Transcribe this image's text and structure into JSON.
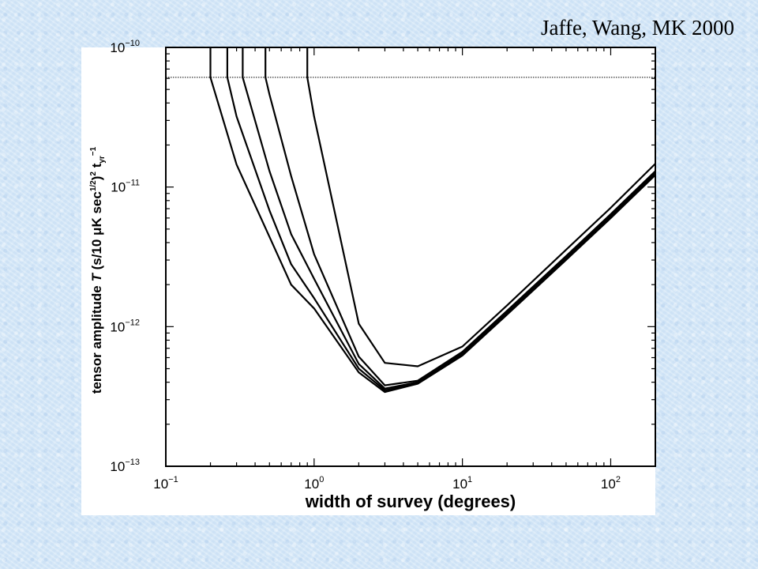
{
  "citation": "Jaffe, Wang, MK 2000",
  "chart_data": {
    "type": "line",
    "title": "",
    "xlabel": "width of survey (degrees)",
    "ylabel": {
      "pre": "tensor amplitude ",
      "symbol": "T",
      "mid": " (s/10 μK sec",
      "exp1": "1/2",
      "close": ")",
      "exp2": "2",
      "t": " t",
      "sub": "yr",
      "exp3": "−1"
    },
    "x_scale": "log",
    "y_scale": "log",
    "xlim": [
      0.1,
      200
    ],
    "ylim": [
      1e-13,
      1e-10
    ],
    "x_ticks": [
      {
        "value": 0.1,
        "base": "10",
        "exp": "−1"
      },
      {
        "value": 1,
        "base": "10",
        "exp": "0"
      },
      {
        "value": 10,
        "base": "10",
        "exp": "1"
      },
      {
        "value": 100,
        "base": "10",
        "exp": "2"
      }
    ],
    "y_ticks": [
      {
        "value": 1e-10,
        "base": "10",
        "exp": "−10"
      },
      {
        "value": 1e-11,
        "base": "10",
        "exp": "−11"
      },
      {
        "value": 1e-12,
        "base": "10",
        "exp": "−12"
      },
      {
        "value": 1e-13,
        "base": "10",
        "exp": "−13"
      }
    ],
    "reference_line": {
      "y": 6.1e-11,
      "style": "dotted"
    },
    "grid": false,
    "series": [
      {
        "x": [
          0.2,
          0.3,
          0.5,
          0.7,
          1.0,
          2.0,
          3.0,
          5.0,
          10,
          20,
          50,
          100,
          200
        ],
        "y": [
          6.1e-11,
          1.45e-11,
          4.4e-12,
          2e-12,
          1.35e-12,
          4.7e-13,
          3.4e-13,
          3.9e-13,
          6.2e-13,
          1.22e-12,
          3e-12,
          6e-12,
          1.22e-11
        ]
      },
      {
        "x": [
          0.26,
          0.3,
          0.5,
          0.7,
          1.0,
          2.0,
          3.0,
          5.0,
          10,
          20,
          50,
          100,
          200
        ],
        "y": [
          6.1e-11,
          3.2e-11,
          6.8e-12,
          2.8e-12,
          1.6e-12,
          5e-13,
          3.5e-13,
          3.95e-13,
          6.3e-13,
          1.24e-12,
          3.05e-12,
          6.1e-12,
          1.24e-11
        ]
      },
      {
        "x": [
          0.33,
          0.5,
          0.7,
          1.0,
          2.0,
          3.0,
          5.0,
          10,
          20,
          50,
          100,
          200
        ],
        "y": [
          6.1e-11,
          1.3e-11,
          4.6e-12,
          2.2e-12,
          5.4e-13,
          3.6e-13,
          4e-13,
          6.5e-13,
          1.27e-12,
          3.1e-12,
          6.2e-12,
          1.27e-11
        ]
      },
      {
        "x": [
          0.47,
          0.5,
          0.7,
          1.0,
          2.0,
          3.0,
          5.0,
          10,
          20,
          50,
          100,
          200
        ],
        "y": [
          6.1e-11,
          4.6e-11,
          1.2e-11,
          3.3e-12,
          6.1e-13,
          3.8e-13,
          4.1e-13,
          6.6e-13,
          1.3e-12,
          3.2e-12,
          6.4e-12,
          1.3e-11
        ]
      },
      {
        "x": [
          0.9,
          1.0,
          2.0,
          3.0,
          5.0,
          10,
          20,
          50,
          100,
          200
        ],
        "y": [
          6.1e-11,
          3.2e-11,
          1.05e-12,
          5.5e-13,
          5.2e-13,
          7.2e-13,
          1.42e-12,
          3.55e-12,
          7.1e-12,
          1.47e-11
        ]
      }
    ]
  }
}
